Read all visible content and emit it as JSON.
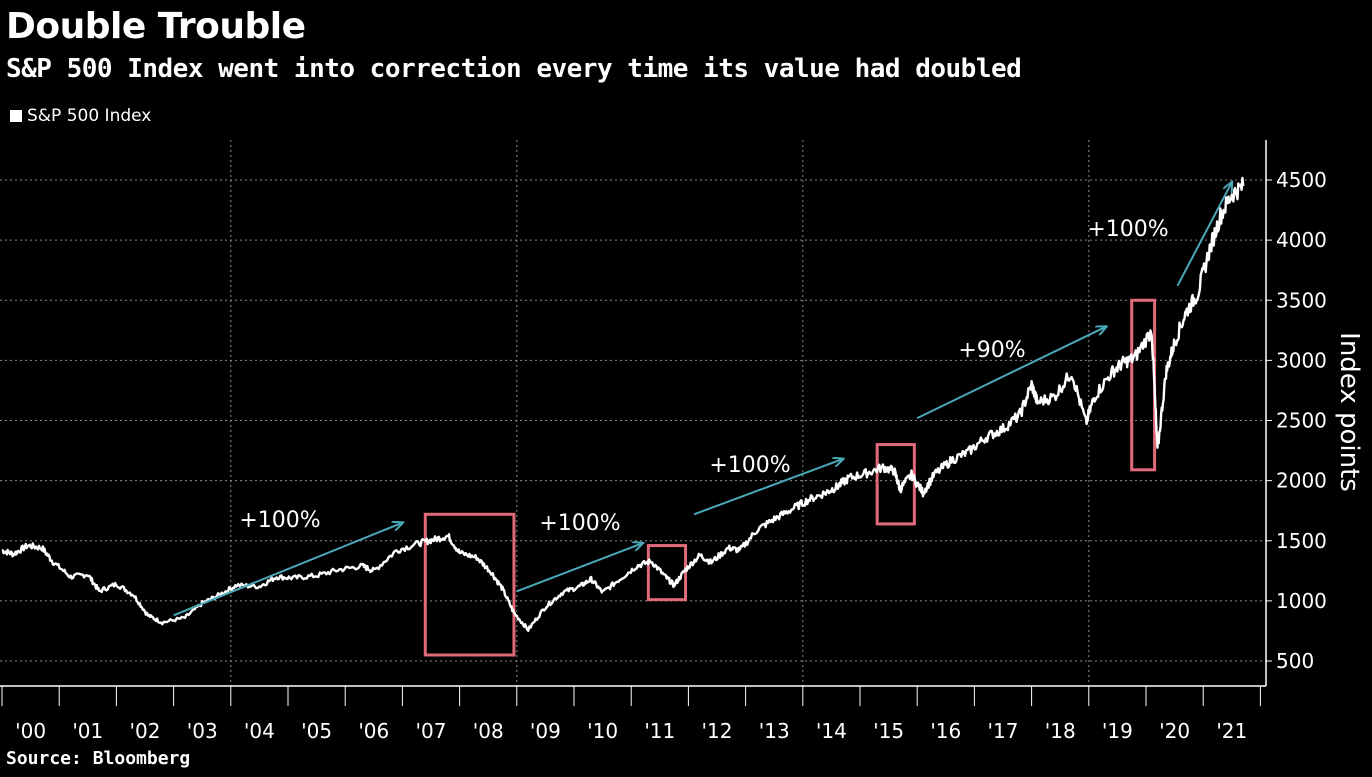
{
  "title": "Double Trouble",
  "subtitle": "S&P 500 Index went into correction every time its value had doubled",
  "legend_label": "S&P 500 Index",
  "source": "Source: Bloomberg",
  "colors": {
    "background": "#000000",
    "line": "#ffffff",
    "arrow": "#4aa8b8",
    "box": "#e06a7a",
    "grid": "#8a8a8a"
  },
  "chart_data": {
    "type": "line",
    "title": "Double Trouble",
    "ylabel": "Index points",
    "xlabel": "",
    "ylim": [
      370,
      4900
    ],
    "xlim": [
      2000.0,
      2021.9
    ],
    "yticks": [
      500,
      1000,
      1500,
      2000,
      2500,
      3000,
      3500,
      4000,
      4500
    ],
    "xtick_labels": [
      "'00",
      "'01",
      "'02",
      "'03",
      "'04",
      "'05",
      "'06",
      "'07",
      "'08",
      "'09",
      "'10",
      "'11",
      "'12",
      "'13",
      "'14",
      "'15",
      "'16",
      "'17",
      "'18",
      "'19",
      "'20",
      "'21"
    ],
    "series": [
      {
        "name": "S&P 500 Index",
        "x": [
          2000.0,
          2000.2,
          2000.45,
          2000.7,
          2000.9,
          2001.2,
          2001.5,
          2001.7,
          2002.0,
          2002.3,
          2002.55,
          2002.8,
          2003.2,
          2003.5,
          2003.8,
          2004.1,
          2004.5,
          2004.8,
          2005.1,
          2005.5,
          2005.9,
          2006.3,
          2006.5,
          2006.9,
          2007.3,
          2007.55,
          2007.8,
          2008.0,
          2008.3,
          2008.55,
          2008.75,
          2008.95,
          2009.2,
          2009.5,
          2009.8,
          2010.1,
          2010.3,
          2010.5,
          2010.8,
          2011.1,
          2011.35,
          2011.6,
          2011.75,
          2011.95,
          2012.2,
          2012.4,
          2012.7,
          2012.9,
          2013.2,
          2013.5,
          2013.8,
          2014.1,
          2014.4,
          2014.6,
          2014.8,
          2015.1,
          2015.4,
          2015.6,
          2015.7,
          2015.9,
          2016.1,
          2016.3,
          2016.6,
          2016.9,
          2017.2,
          2017.5,
          2017.8,
          2018.0,
          2018.1,
          2018.4,
          2018.7,
          2018.95,
          2019.1,
          2019.4,
          2019.6,
          2019.8,
          2020.1,
          2020.2,
          2020.35,
          2020.5,
          2020.7,
          2020.9,
          2021.1,
          2021.3,
          2021.5,
          2021.7
        ],
        "values": [
          1420,
          1390,
          1460,
          1440,
          1320,
          1200,
          1220,
          1080,
          1140,
          1050,
          880,
          820,
          860,
          980,
          1050,
          1130,
          1120,
          1200,
          1190,
          1210,
          1260,
          1290,
          1250,
          1420,
          1480,
          1510,
          1540,
          1400,
          1360,
          1240,
          1100,
          900,
          760,
          950,
          1070,
          1120,
          1180,
          1070,
          1180,
          1290,
          1330,
          1200,
          1130,
          1260,
          1380,
          1320,
          1440,
          1420,
          1590,
          1680,
          1760,
          1840,
          1900,
          1950,
          2020,
          2060,
          2110,
          2080,
          1930,
          2050,
          1900,
          2050,
          2170,
          2240,
          2360,
          2430,
          2550,
          2800,
          2650,
          2700,
          2900,
          2480,
          2700,
          2900,
          2980,
          3020,
          3250,
          2250,
          2900,
          3150,
          3400,
          3550,
          3900,
          4200,
          4380,
          4450
        ]
      }
    ],
    "annotations": [
      {
        "text": "+100%"
      },
      {
        "text": "+100%"
      },
      {
        "text": "+100%"
      },
      {
        "text": "+90%"
      },
      {
        "text": "+100%"
      }
    ],
    "arrows": [
      {
        "from": [
          2003.0,
          880
        ],
        "to": [
          2007.0,
          1650
        ]
      },
      {
        "from": [
          2009.0,
          1080
        ],
        "to": [
          2011.2,
          1480
        ]
      },
      {
        "from": [
          2012.1,
          1720
        ],
        "to": [
          2014.7,
          2180
        ]
      },
      {
        "from": [
          2016.0,
          2520
        ],
        "to": [
          2019.3,
          3280
        ]
      },
      {
        "from": [
          2020.55,
          3620
        ],
        "to": [
          2021.5,
          4480
        ]
      }
    ],
    "correction_boxes": [
      {
        "x": [
          2007.4,
          2008.95
        ],
        "y": [
          550,
          1720
        ]
      },
      {
        "x": [
          2011.3,
          2011.95
        ],
        "y": [
          1010,
          1460
        ]
      },
      {
        "x": [
          2015.3,
          2015.95
        ],
        "y": [
          1640,
          2300
        ]
      },
      {
        "x": [
          2019.75,
          2020.15
        ],
        "y": [
          2090,
          3500
        ]
      }
    ]
  }
}
